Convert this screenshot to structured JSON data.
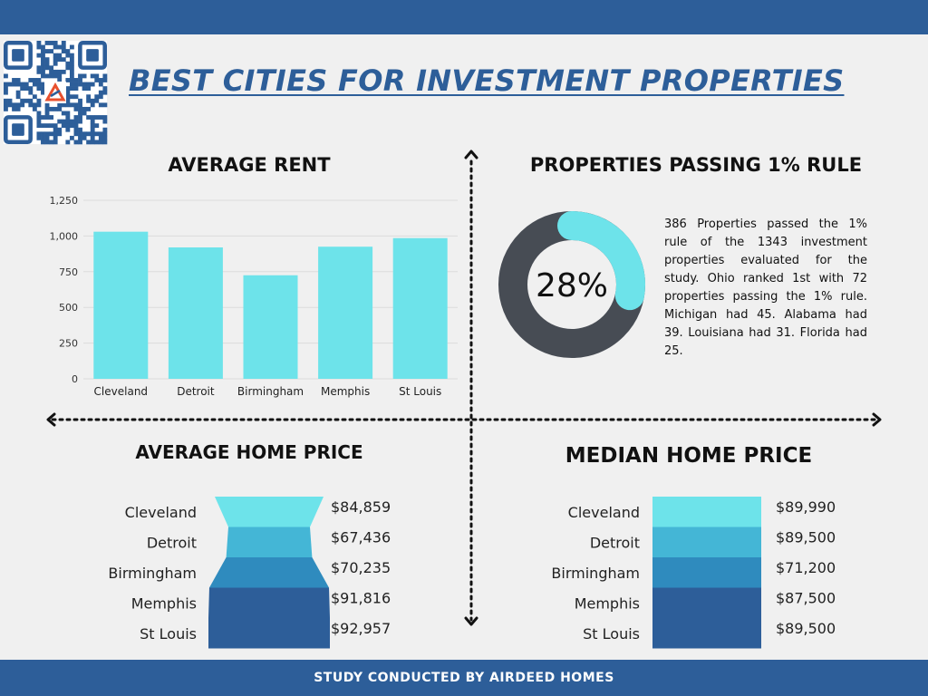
{
  "title": "BEST CITIES FOR INVESTMENT PROPERTIES",
  "footer": "STUDY CONDUCTED BY AIRDEED HOMES",
  "colors": {
    "brand": "#2d5e99",
    "bar": "#6de3ea",
    "donut_dark": "#474c54",
    "donut_light": "#6de3ea",
    "funnel": [
      "#6de3ea",
      "#44b6d6",
      "#2f8bbe",
      "#2d5e99",
      "#2d5e99"
    ]
  },
  "icons": {
    "qr": "qr-code-icon",
    "logo": "airdeed-logo-icon",
    "arrows": "double-arrow-icon"
  },
  "chart_data": [
    {
      "type": "bar",
      "title": "AVERAGE RENT",
      "categories": [
        "Cleveland",
        "Detroit",
        "Birmingham",
        "Memphis",
        "St Louis"
      ],
      "values": [
        1030,
        920,
        725,
        925,
        985
      ],
      "ylim": [
        0,
        1250
      ],
      "yticks": [
        "0",
        "250",
        "500",
        "750",
        "1,000",
        "1,250"
      ],
      "grid": true
    },
    {
      "type": "pie",
      "title": "PROPERTIES PASSING 1% RULE",
      "percent": 28,
      "center_label": "28%",
      "description": "386 Properties passed the 1% rule of the 1343 investment properties evaluated for the study. Ohio ranked 1st with 72 properties passing the 1% rule. Michigan had 45. Alabama had 39. Louisiana had 31. Florida had 25."
    },
    {
      "type": "bar",
      "title": "AVERAGE HOME PRICE",
      "categories": [
        "Cleveland",
        "Detroit",
        "Birmingham",
        "Memphis",
        "St Louis"
      ],
      "values": [
        84859,
        67436,
        70235,
        91816,
        92957
      ],
      "value_labels": [
        "$84,859",
        "$67,436",
        "$70,235",
        "$91,816",
        "$92,957"
      ]
    },
    {
      "type": "bar",
      "title": "MEDIAN HOME PRICE",
      "categories": [
        "Cleveland",
        "Detroit",
        "Birmingham",
        "Memphis",
        "St Louis"
      ],
      "values": [
        89990,
        89500,
        71200,
        87500,
        89500
      ],
      "value_labels": [
        "$89,990",
        "$89,500",
        "$71,200",
        "$87,500",
        "$89,500"
      ]
    }
  ]
}
